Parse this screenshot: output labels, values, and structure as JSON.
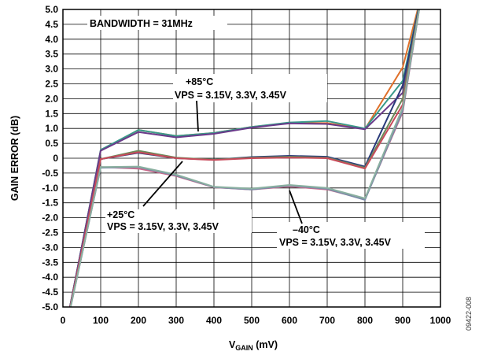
{
  "chart_data": {
    "type": "line",
    "xlabel_main": "V",
    "xlabel_sub": "GAIN",
    "xlabel_unit": " (mV)",
    "ylabel": "GAIN ERROR (dB)",
    "xlim": [
      0,
      1000
    ],
    "ylim": [
      -5.0,
      5.0
    ],
    "x_ticks": [
      "0",
      "100",
      "200",
      "300",
      "400",
      "500",
      "600",
      "700",
      "800",
      "900",
      "1000"
    ],
    "y_ticks": [
      "5.0",
      "4.5",
      "4.0",
      "3.5",
      "3.0",
      "2.5",
      "2.0",
      "1.5",
      "1.0",
      "0.5",
      "0",
      "-0.5",
      "-1.0",
      "-1.5",
      "-2.0",
      "-2.5",
      "-3.0",
      "-3.5",
      "-4.0",
      "-4.5",
      "-5.0"
    ],
    "grid": true,
    "annotations": {
      "bandwidth": "BANDWIDTH = 31MHz",
      "hot_temp": "+85°C",
      "hot_vps": "VPS = 3.15V, 3.3V, 3.45V",
      "room_temp": "+25°C",
      "room_vps": "VPS = 3.15V, 3.3V, 3.45V",
      "cold_temp": "–40°C",
      "cold_vps": "VPS = 3.15V, 3.3V, 3.45V"
    },
    "figure_id": "09422-008",
    "series": [
      {
        "color": "#e0702a",
        "x": [
          0,
          100,
          200,
          300,
          400,
          500,
          600,
          700,
          800,
          900,
          950
        ],
        "y": [
          -6.2,
          0.25,
          0.95,
          0.75,
          0.85,
          1.05,
          1.18,
          1.18,
          0.98,
          3.05,
          5.5
        ]
      },
      {
        "color": "#3a9a8a",
        "x": [
          0,
          100,
          200,
          300,
          400,
          500,
          600,
          700,
          800,
          900,
          950
        ],
        "y": [
          -6.2,
          0.28,
          0.95,
          0.75,
          0.85,
          1.05,
          1.2,
          1.25,
          1.0,
          2.6,
          5.5
        ]
      },
      {
        "color": "#6a3a8a",
        "x": [
          0,
          100,
          200,
          300,
          400,
          500,
          600,
          700,
          800,
          900,
          950
        ],
        "y": [
          -6.2,
          0.25,
          0.88,
          0.7,
          0.82,
          1.03,
          1.17,
          1.15,
          0.97,
          2.2,
          5.5
        ]
      },
      {
        "color": "#2a3a7a",
        "x": [
          0,
          100,
          200,
          300,
          400,
          500,
          600,
          700,
          800,
          900,
          950
        ],
        "y": [
          -6.2,
          -0.03,
          0.18,
          0.0,
          -0.05,
          0.04,
          0.08,
          0.05,
          -0.28,
          2.45,
          5.5
        ]
      },
      {
        "color": "#6a8a5a",
        "x": [
          0,
          100,
          200,
          300,
          400,
          500,
          600,
          700,
          800,
          900,
          950
        ],
        "y": [
          -6.2,
          -0.03,
          0.25,
          0.02,
          -0.05,
          0.02,
          0.05,
          0.02,
          -0.32,
          2.0,
          5.5
        ]
      },
      {
        "color": "#c84a5a",
        "x": [
          0,
          100,
          200,
          300,
          400,
          500,
          600,
          700,
          800,
          900,
          950
        ],
        "y": [
          -6.2,
          -0.03,
          0.2,
          0.0,
          -0.06,
          0.0,
          0.02,
          0.0,
          -0.35,
          1.8,
          5.5
        ]
      },
      {
        "color": "#c86a8a",
        "x": [
          0,
          100,
          200,
          300,
          400,
          500,
          600,
          700,
          800,
          900,
          950
        ],
        "y": [
          -6.2,
          -0.3,
          -0.35,
          -0.6,
          -0.98,
          -1.05,
          -0.95,
          -1.05,
          -1.38,
          1.55,
          5.5
        ]
      },
      {
        "color": "#7a8aa8",
        "x": [
          0,
          100,
          200,
          300,
          400,
          500,
          600,
          700,
          800,
          900,
          950
        ],
        "y": [
          -6.2,
          -0.32,
          -0.3,
          -0.58,
          -0.97,
          -1.05,
          -0.92,
          -1.03,
          -1.4,
          1.6,
          5.5
        ]
      },
      {
        "color": "#8ab0a0",
        "x": [
          0,
          100,
          200,
          300,
          400,
          500,
          600,
          700,
          800,
          900,
          950
        ],
        "y": [
          -6.2,
          -0.3,
          -0.28,
          -0.55,
          -0.96,
          -1.02,
          -0.9,
          -1.0,
          -1.35,
          1.7,
          5.5
        ]
      }
    ]
  }
}
